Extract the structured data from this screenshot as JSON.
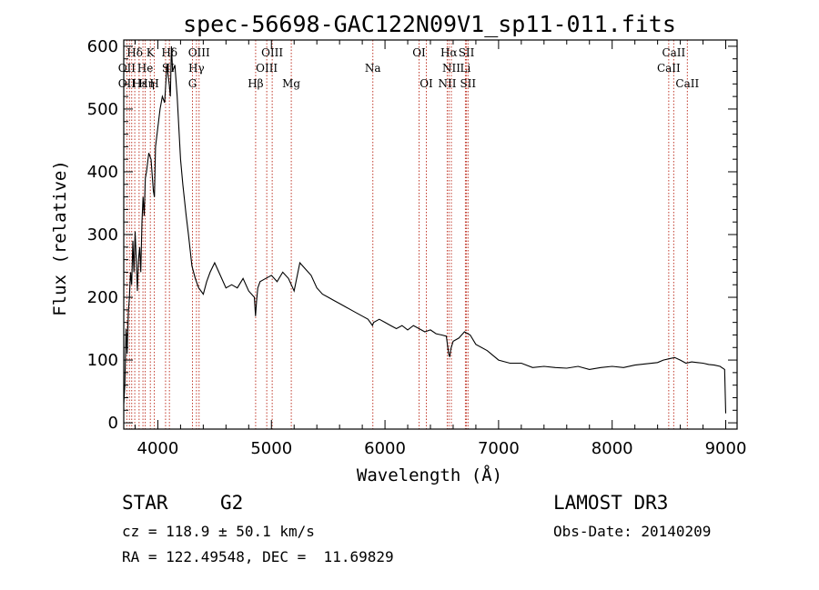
{
  "chart_data": {
    "type": "line",
    "title": "spec-56698-GAC122N09V1_sp11-011.fits",
    "xlabel": "Wavelength (Å)",
    "ylabel": "Flux (relative)",
    "xlim": [
      3700,
      9100
    ],
    "ylim": [
      -10,
      610
    ],
    "xticks": [
      4000,
      5000,
      6000,
      7000,
      8000,
      9000
    ],
    "yticks": [
      0,
      100,
      200,
      300,
      400,
      500,
      600
    ],
    "grid": false,
    "series": [
      {
        "name": "flux",
        "x": [
          3700,
          3710,
          3720,
          3730,
          3740,
          3750,
          3760,
          3770,
          3780,
          3790,
          3800,
          3810,
          3820,
          3830,
          3840,
          3850,
          3860,
          3870,
          3880,
          3890,
          3900,
          3920,
          3940,
          3960,
          3970,
          3980,
          4000,
          4020,
          4040,
          4060,
          4080,
          4100,
          4110,
          4120,
          4130,
          4150,
          4170,
          4200,
          4220,
          4250,
          4270,
          4300,
          4330,
          4360,
          4400,
          4430,
          4460,
          4500,
          4550,
          4600,
          4650,
          4700,
          4750,
          4800,
          4850,
          4860,
          4870,
          4880,
          4900,
          4950,
          5000,
          5050,
          5100,
          5150,
          5200,
          5250,
          5300,
          5350,
          5400,
          5450,
          5500,
          5550,
          5600,
          5650,
          5700,
          5750,
          5800,
          5850,
          5890,
          5900,
          5950,
          6000,
          6050,
          6100,
          6150,
          6200,
          6250,
          6300,
          6350,
          6400,
          6450,
          6500,
          6540,
          6560,
          6570,
          6580,
          6600,
          6650,
          6700,
          6750,
          6800,
          6900,
          7000,
          7100,
          7200,
          7300,
          7400,
          7500,
          7600,
          7700,
          7800,
          7900,
          8000,
          8100,
          8200,
          8300,
          8400,
          8450,
          8500,
          8550,
          8600,
          8650,
          8700,
          8750,
          8800,
          8850,
          8900,
          8950,
          8990,
          9000
        ],
        "y": [
          30,
          60,
          150,
          110,
          175,
          200,
          240,
          220,
          290,
          240,
          305,
          260,
          210,
          260,
          280,
          240,
          320,
          360,
          330,
          390,
          400,
          430,
          420,
          370,
          360,
          440,
          470,
          500,
          520,
          510,
          570,
          540,
          520,
          600,
          560,
          570,
          520,
          420,
          380,
          330,
          300,
          250,
          230,
          215,
          205,
          225,
          240,
          255,
          235,
          215,
          220,
          215,
          230,
          210,
          200,
          170,
          195,
          215,
          225,
          230,
          235,
          225,
          240,
          230,
          210,
          255,
          245,
          235,
          215,
          205,
          200,
          195,
          190,
          185,
          180,
          175,
          170,
          165,
          155,
          160,
          165,
          160,
          155,
          150,
          155,
          148,
          155,
          150,
          145,
          148,
          142,
          140,
          138,
          110,
          105,
          118,
          130,
          135,
          145,
          140,
          125,
          115,
          100,
          95,
          95,
          88,
          90,
          88,
          87,
          90,
          85,
          88,
          90,
          88,
          92,
          94,
          96,
          100,
          102,
          104,
          100,
          95,
          97,
          96,
          95,
          93,
          92,
          90,
          85,
          15
        ]
      }
    ],
    "line_labels": [
      {
        "text": "Hδ",
        "x": 3797,
        "row": 1
      },
      {
        "text": "K",
        "x": 3934,
        "row": 1
      },
      {
        "text": "Hδ",
        "x": 4102,
        "row": 1
      },
      {
        "text": "OIII",
        "x": 4363,
        "row": 1
      },
      {
        "text": "OIII",
        "x": 5007,
        "row": 1
      },
      {
        "text": "OI",
        "x": 6300,
        "row": 1
      },
      {
        "text": "Hα",
        "x": 6563,
        "row": 1
      },
      {
        "text": "SII",
        "x": 6717,
        "row": 1
      },
      {
        "text": "CaII",
        "x": 8542,
        "row": 1
      },
      {
        "text": "OII",
        "x": 3727,
        "row": 2
      },
      {
        "text": "He",
        "x": 3889,
        "row": 2
      },
      {
        "text": "S",
        "x": 4068,
        "row": 2
      },
      {
        "text": "II",
        "x": 4110,
        "row": 2
      },
      {
        "text": "Hγ",
        "x": 4340,
        "row": 2
      },
      {
        "text": "OIII",
        "x": 4959,
        "row": 2
      },
      {
        "text": "Na",
        "x": 5893,
        "row": 2
      },
      {
        "text": "NII",
        "x": 6584,
        "row": 2
      },
      {
        "text": "Li",
        "x": 6708,
        "row": 2
      },
      {
        "text": "CaII",
        "x": 8498,
        "row": 2
      },
      {
        "text": "OII",
        "x": 3727,
        "row": 3
      },
      {
        "text": "Hε",
        "x": 3840,
        "row": 3
      },
      {
        "text": "Hη",
        "x": 3900,
        "row": 3
      },
      {
        "text": "H",
        "x": 3969,
        "row": 3
      },
      {
        "text": "G",
        "x": 4305,
        "row": 3
      },
      {
        "text": "Hβ",
        "x": 4861,
        "row": 3
      },
      {
        "text": "Mg",
        "x": 5175,
        "row": 3
      },
      {
        "text": "OI",
        "x": 6364,
        "row": 3
      },
      {
        "text": "NII",
        "x": 6548,
        "row": 3
      },
      {
        "text": "SII",
        "x": 6731,
        "row": 3
      },
      {
        "text": "CaII",
        "x": 8662,
        "row": 3
      }
    ],
    "marker_lines": [
      3727,
      3750,
      3770,
      3797,
      3835,
      3869,
      3889,
      3934,
      3969,
      4068,
      4102,
      4305,
      4340,
      4363,
      4861,
      4959,
      5007,
      5175,
      5893,
      6300,
      6364,
      6548,
      6563,
      6584,
      6708,
      6717,
      6731,
      8498,
      8542,
      8662
    ]
  },
  "info": {
    "object_class": "STAR",
    "subclass": "G2",
    "survey": "LAMOST DR3",
    "redshift": "cz = 118.9 ± 50.1 km/s",
    "obs_date": "Obs-Date: 20140209",
    "coords": "RA = 122.49548, DEC =  11.69829"
  }
}
